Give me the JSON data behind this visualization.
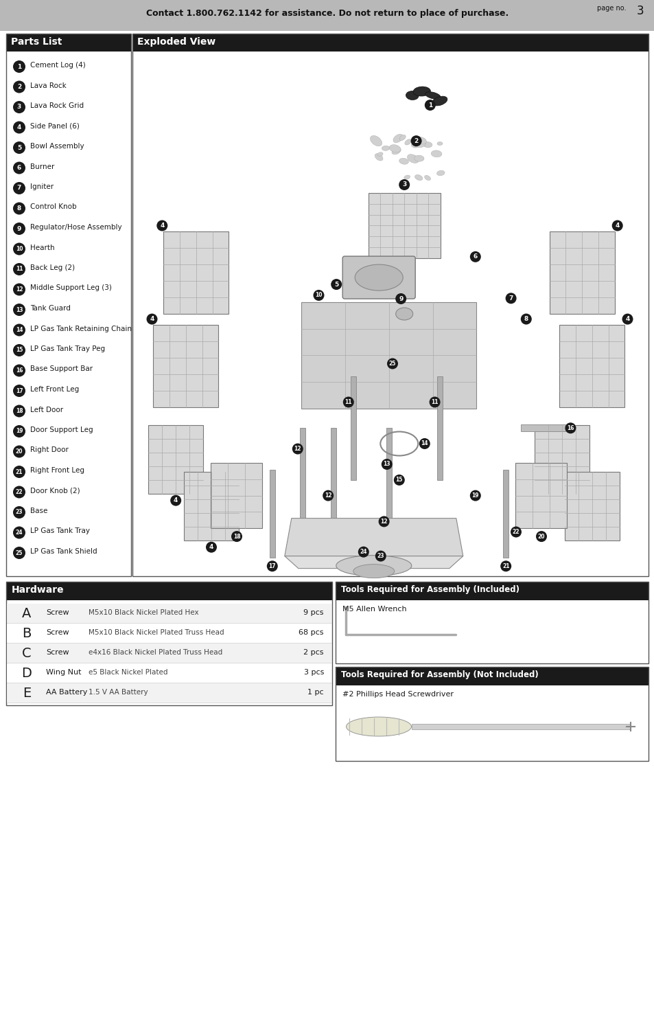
{
  "page_bg": "#ffffff",
  "header_bg": "#b8b8b8",
  "header_text": "Contact 1.800.762.1142 for assistance. Do not return to place of purchase.",
  "page_no_label": "page no.",
  "page_no": "3",
  "parts_list_title": "Parts List",
  "parts_list_title_bg": "#1a1a1a",
  "parts_list_title_color": "#ffffff",
  "parts": [
    {
      "num": "1",
      "desc": "Cement Log (4)"
    },
    {
      "num": "2",
      "desc": "Lava Rock"
    },
    {
      "num": "3",
      "desc": "Lava Rock Grid"
    },
    {
      "num": "4",
      "desc": "Side Panel (6)"
    },
    {
      "num": "5",
      "desc": "Bowl Assembly"
    },
    {
      "num": "6",
      "desc": "Burner"
    },
    {
      "num": "7",
      "desc": "Igniter"
    },
    {
      "num": "8",
      "desc": "Control Knob"
    },
    {
      "num": "9",
      "desc": "Regulator/Hose Assembly"
    },
    {
      "num": "10",
      "desc": "Hearth"
    },
    {
      "num": "11",
      "desc": "Back Leg (2)"
    },
    {
      "num": "12",
      "desc": "Middle Support Leg (3)"
    },
    {
      "num": "13",
      "desc": "Tank Guard"
    },
    {
      "num": "14",
      "desc": "LP Gas Tank Retaining Chain"
    },
    {
      "num": "15",
      "desc": "LP Gas Tank Tray Peg"
    },
    {
      "num": "16",
      "desc": "Base Support Bar"
    },
    {
      "num": "17",
      "desc": "Left Front Leg"
    },
    {
      "num": "18",
      "desc": "Left Door"
    },
    {
      "num": "19",
      "desc": "Door Support Leg"
    },
    {
      "num": "20",
      "desc": "Right Door"
    },
    {
      "num": "21",
      "desc": "Right Front Leg"
    },
    {
      "num": "22",
      "desc": "Door Knob (2)"
    },
    {
      "num": "23",
      "desc": "Base"
    },
    {
      "num": "24",
      "desc": "LP Gas Tank Tray"
    },
    {
      "num": "25",
      "desc": "LP Gas Tank Shield"
    }
  ],
  "exploded_view_title": "Exploded View",
  "exploded_view_title_bg": "#1a1a1a",
  "exploded_view_title_color": "#ffffff",
  "hardware_title": "Hardware",
  "hardware_title_bg": "#1a1a1a",
  "hardware_title_color": "#ffffff",
  "hardware_items": [
    {
      "label": "A",
      "name": "Screw",
      "desc": "M5x10 Black Nickel Plated Hex",
      "qty": "9 pcs"
    },
    {
      "label": "B",
      "name": "Screw",
      "desc": "M5x10 Black Nickel Plated Truss Head",
      "qty": "68 pcs"
    },
    {
      "label": "C",
      "name": "Screw",
      "desc": "e4x16 Black Nickel Plated Truss Head",
      "qty": "2 pcs"
    },
    {
      "label": "D",
      "name": "Wing Nut",
      "desc": "e5 Black Nickel Plated",
      "qty": "3 pcs"
    },
    {
      "label": "E",
      "name": "AA Battery",
      "desc": "1.5 V AA Battery",
      "qty": "1 pc"
    }
  ],
  "tools_included_title": "Tools Required for Assembly (Included)",
  "tools_included_title_bg": "#1a1a1a",
  "tools_included_title_color": "#ffffff",
  "tools_included_item": "M5 Allen Wrench",
  "tools_not_included_title": "Tools Required for Assembly (Not Included)",
  "tools_not_included_title_bg": "#1a1a1a",
  "tools_not_included_title_color": "#ffffff",
  "tools_not_included_item": "#2 Phillips Head Screwdriver",
  "badge_bg": "#1a1a1a",
  "badge_fg": "#ffffff",
  "panel_face": "#d8d8d8",
  "panel_edge": "#777777",
  "panel_grid": "#aaaaaa"
}
